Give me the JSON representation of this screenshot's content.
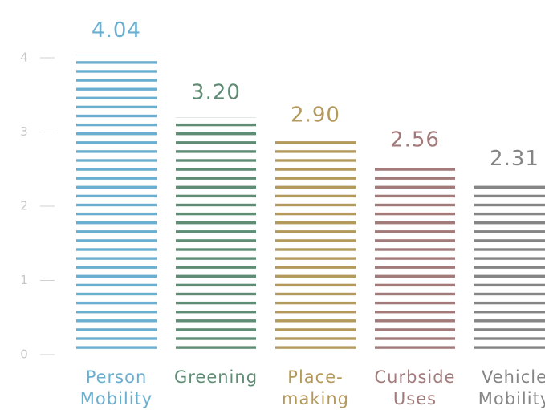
{
  "chart_data": {
    "type": "bar",
    "categories": [
      [
        "Person",
        "Mobility"
      ],
      [
        "Greening"
      ],
      [
        "Place-",
        "making"
      ],
      [
        "Curbside",
        "Uses"
      ],
      [
        "Vehicle",
        "Mobility"
      ]
    ],
    "values": [
      4.04,
      3.2,
      2.9,
      2.56,
      2.31
    ],
    "value_labels": [
      "4.04",
      "3.20",
      "2.90",
      "2.56",
      "2.31"
    ],
    "colors": [
      "#6aaed0",
      "#5e8c74",
      "#b39a5c",
      "#a27a7a",
      "#858585"
    ],
    "ylim": [
      0,
      4.5
    ],
    "yticks": [
      0,
      1,
      2,
      3,
      4
    ]
  }
}
